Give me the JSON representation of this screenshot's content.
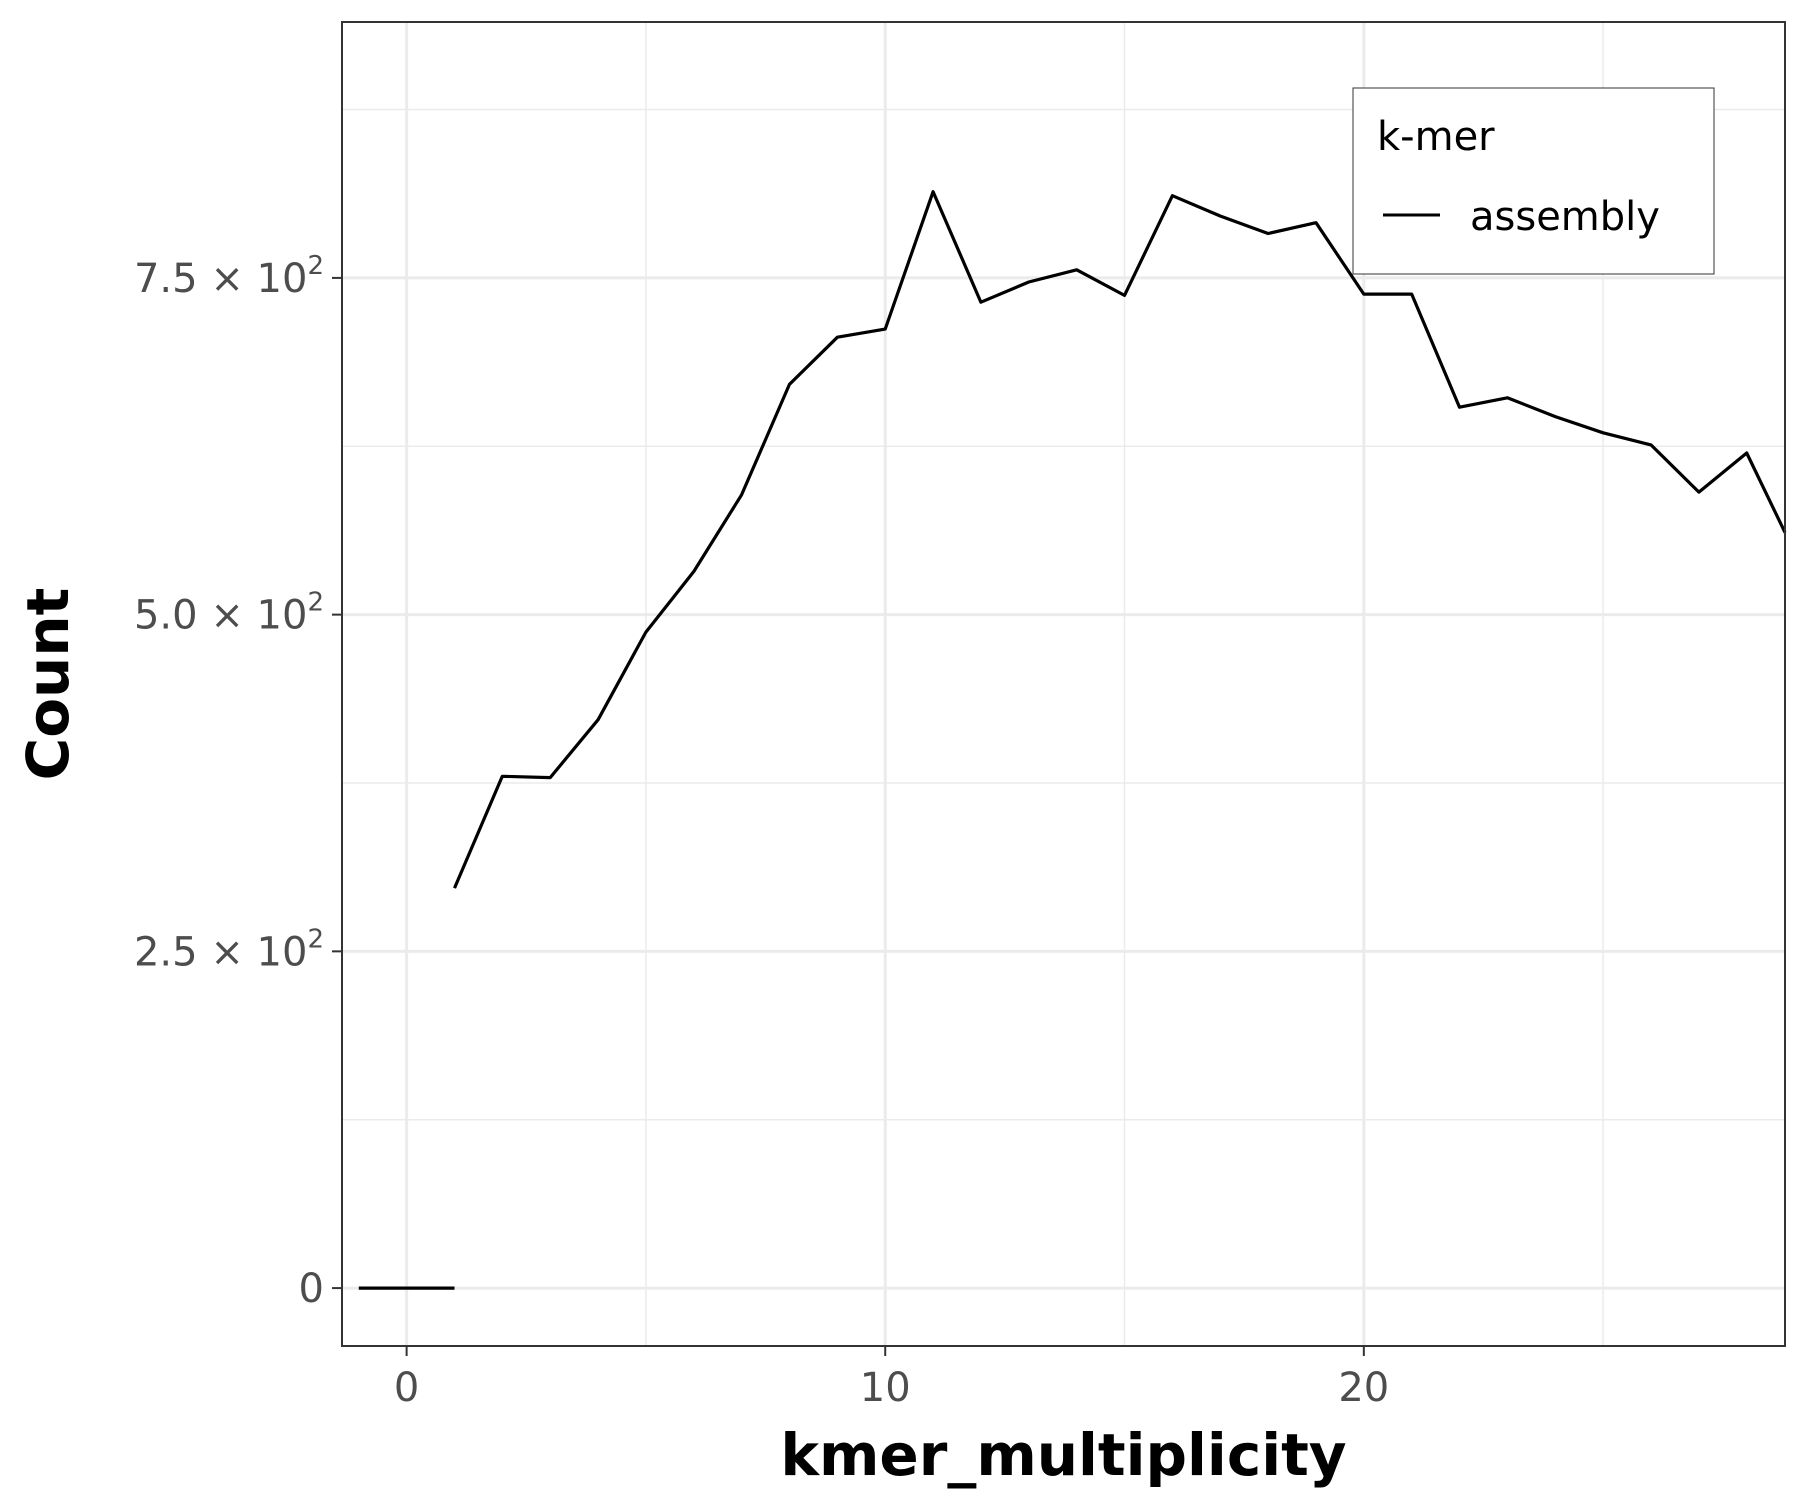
{
  "chart_data": {
    "type": "line",
    "xlabel": "kmer_multiplicity",
    "ylabel": "Count",
    "xlim": [
      -1.35,
      28.8
    ],
    "ylim": [
      -43,
      940
    ],
    "x_ticks": [
      {
        "value": 0,
        "label": "0"
      },
      {
        "value": 10,
        "label": "10"
      },
      {
        "value": 20,
        "label": "20"
      }
    ],
    "y_ticks": [
      {
        "value": 0,
        "mantissa": "0",
        "exponent": ""
      },
      {
        "value": 250,
        "mantissa": "2.5 × 10",
        "exponent": "2"
      },
      {
        "value": 500,
        "mantissa": "5.0 × 10",
        "exponent": "2"
      },
      {
        "value": 750,
        "mantissa": "7.5 × 10",
        "exponent": "2"
      }
    ],
    "grid": true,
    "legend": {
      "title": "k-mer",
      "position": "top-right"
    },
    "series": [
      {
        "name": "assembly",
        "color": "#000000",
        "segments": [
          [
            [
              -1,
              0
            ],
            [
              1,
              0
            ]
          ],
          [
            [
              1,
              297
            ],
            [
              2,
              380
            ],
            [
              3,
              379
            ],
            [
              4,
              422
            ],
            [
              5,
              487
            ],
            [
              6,
              532
            ],
            [
              7,
              589
            ],
            [
              8,
              671
            ],
            [
              9,
              706
            ],
            [
              10,
              712
            ],
            [
              11,
              814
            ],
            [
              12,
              732
            ],
            [
              13,
              747
            ],
            [
              14,
              756
            ],
            [
              15,
              737
            ],
            [
              16,
              811
            ],
            [
              17,
              796
            ],
            [
              18,
              783
            ],
            [
              19,
              791
            ],
            [
              20,
              738
            ],
            [
              21,
              738
            ],
            [
              22,
              654
            ],
            [
              23,
              661
            ],
            [
              24,
              647
            ],
            [
              25,
              635
            ],
            [
              26,
              626
            ],
            [
              27,
              591
            ],
            [
              28,
              620
            ],
            [
              28.8,
              561
            ]
          ]
        ]
      }
    ]
  }
}
